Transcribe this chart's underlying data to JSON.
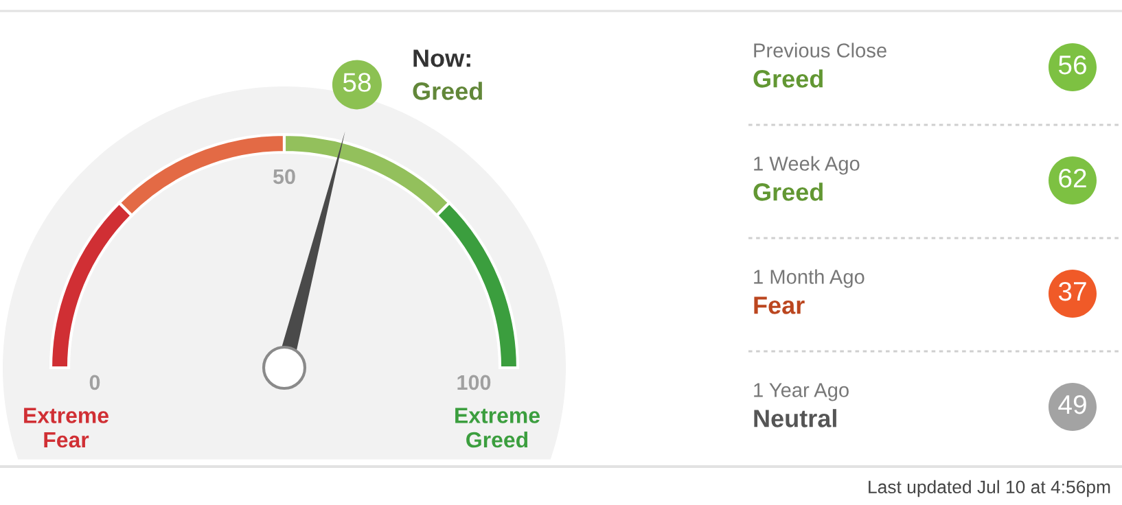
{
  "chart_data": [
    {
      "type": "other",
      "values": [
        58
      ],
      "data_labels": true,
      "color": "#8cc152",
      "annotations": [
        "Now:",
        "Greed",
        "Extreme\nFear",
        "Extreme\nGreed",
        "0",
        "50",
        "100"
      ]
    },
    {
      "type": "other",
      "categories": [
        "Previous Close",
        "1 Week Ago",
        "1 Month Ago",
        "1 Year Ago"
      ],
      "values": [
        56,
        62,
        37,
        49
      ],
      "colors": [
        "#7dc142",
        "#7dc142",
        "#f05a28",
        "#a3a3a3"
      ],
      "data_labels": true,
      "annotations": [
        "Greed",
        "Greed",
        "Fear",
        "Neutral",
        "Last updated Jul 10 at 4:56pm"
      ]
    }
  ]
}
